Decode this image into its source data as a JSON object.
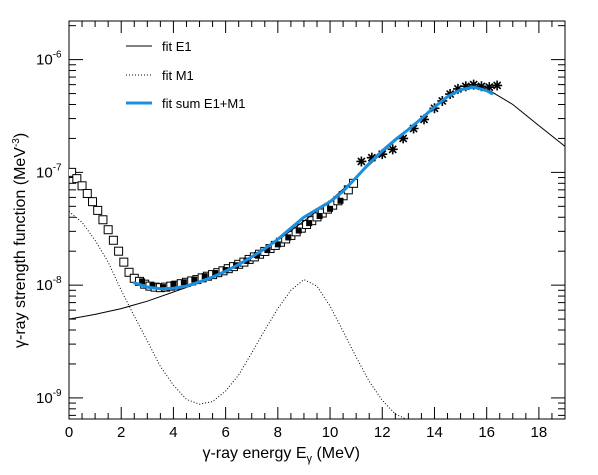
{
  "chart_data": {
    "type": "scatter",
    "xlabel": "γ-ray energy E",
    "xlabel_sub": "γ",
    "xlabel_unit": " (MeV)",
    "ylabel": "γ-ray strength function (MeV",
    "ylabel_sup": "-3",
    "ylabel_close": ")",
    "xlim": [
      0,
      19
    ],
    "ylim": [
      6.5e-10,
      2.2e-06
    ],
    "yscale": "log",
    "x_ticks": [
      0,
      2,
      4,
      6,
      8,
      10,
      12,
      14,
      16,
      18
    ],
    "y_ticks": [
      {
        "mantissa": "10",
        "exp": "-9",
        "value": 1e-09
      },
      {
        "mantissa": "10",
        "exp": "-8",
        "value": 1e-08
      },
      {
        "mantissa": "10",
        "exp": "-7",
        "value": 1e-07
      },
      {
        "mantissa": "10",
        "exp": "-6",
        "value": 1e-06
      }
    ],
    "legend_position": "top-left",
    "series": [
      {
        "name": "fit E1",
        "kind": "line",
        "color": "#000000",
        "style": "solid",
        "points": [
          [
            0,
            5e-09
          ],
          [
            1,
            5.5e-09
          ],
          [
            2,
            6.2e-09
          ],
          [
            3,
            7.2e-09
          ],
          [
            4,
            8.7e-09
          ],
          [
            5,
            1.05e-08
          ],
          [
            6,
            1.35e-08
          ],
          [
            7,
            1.8e-08
          ],
          [
            8,
            2.5e-08
          ],
          [
            9,
            3.7e-08
          ],
          [
            10,
            5.6e-08
          ],
          [
            11,
            9e-08
          ],
          [
            12,
            1.5e-07
          ],
          [
            13,
            2.4e-07
          ],
          [
            14,
            3.9e-07
          ],
          [
            15,
            5.4e-07
          ],
          [
            15.5,
            5.8e-07
          ],
          [
            16,
            5.5e-07
          ],
          [
            17,
            4e-07
          ],
          [
            18,
            2.6e-07
          ],
          [
            19,
            1.7e-07
          ]
        ]
      },
      {
        "name": "fit M1",
        "kind": "line",
        "color": "#000000",
        "style": "dotted",
        "points": [
          [
            0,
            4.5e-08
          ],
          [
            0.5,
            3.6e-08
          ],
          [
            1,
            2.5e-08
          ],
          [
            1.5,
            1.6e-08
          ],
          [
            2,
            9e-09
          ],
          [
            2.5,
            5.3e-09
          ],
          [
            3,
            3.2e-09
          ],
          [
            3.5,
            1.9e-09
          ],
          [
            4,
            1.3e-09
          ],
          [
            4.5,
            9.7e-10
          ],
          [
            5,
            8.8e-10
          ],
          [
            5.5,
            9.3e-10
          ],
          [
            6,
            1.15e-09
          ],
          [
            6.5,
            1.6e-09
          ],
          [
            7,
            2.5e-09
          ],
          [
            7.5,
            4e-09
          ],
          [
            8,
            6.2e-09
          ],
          [
            8.5,
            9e-09
          ],
          [
            9,
            1.12e-08
          ],
          [
            9.5,
            9.8e-09
          ],
          [
            10,
            6.5e-09
          ],
          [
            10.5,
            3.9e-09
          ],
          [
            11,
            2.3e-09
          ],
          [
            11.5,
            1.4e-09
          ],
          [
            12,
            9.5e-10
          ],
          [
            12.5,
            7.2e-10
          ],
          [
            12.9,
            6.5e-10
          ]
        ]
      },
      {
        "name": "fit sum E1+M1",
        "kind": "line",
        "color": "#1a8fe0",
        "style": "solid",
        "points": [
          [
            2.5,
            1.05e-08
          ],
          [
            3,
            9.6e-09
          ],
          [
            3.5,
            9.3e-09
          ],
          [
            4,
            9.4e-09
          ],
          [
            4.5,
            9.8e-09
          ],
          [
            5,
            1.07e-08
          ],
          [
            5.5,
            1.18e-08
          ],
          [
            6,
            1.33e-08
          ],
          [
            6.5,
            1.52e-08
          ],
          [
            7,
            1.78e-08
          ],
          [
            7.5,
            2.1e-08
          ],
          [
            8,
            2.55e-08
          ],
          [
            8.5,
            3.2e-08
          ],
          [
            9,
            4e-08
          ],
          [
            9.5,
            4.7e-08
          ],
          [
            10,
            5.5e-08
          ],
          [
            10.5,
            6.8e-08
          ],
          [
            11,
            9e-08
          ],
          [
            11.5,
            1.2e-07
          ],
          [
            12,
            1.55e-07
          ],
          [
            12.5,
            1.95e-07
          ],
          [
            13,
            2.4e-07
          ],
          [
            13.5,
            3e-07
          ],
          [
            14,
            3.8e-07
          ],
          [
            14.5,
            4.7e-07
          ],
          [
            15,
            5.4e-07
          ],
          [
            15.5,
            5.7e-07
          ],
          [
            16,
            5.3e-07
          ],
          [
            16.2,
            5e-07
          ]
        ]
      },
      {
        "name": "data (open squares)",
        "kind": "markers",
        "marker": "open-square",
        "color": "#000000",
        "points": [
          [
            0.1,
            1e-07
          ],
          [
            0.3,
            8.8e-08
          ],
          [
            0.5,
            7.6e-08
          ],
          [
            0.7,
            6.5e-08
          ],
          [
            0.9,
            5.5e-08
          ],
          [
            1.1,
            4.6e-08
          ],
          [
            1.3,
            3.8e-08
          ],
          [
            1.5,
            3.1e-08
          ],
          [
            1.7,
            2.5e-08
          ],
          [
            1.9,
            2e-08
          ],
          [
            2.1,
            1.6e-08
          ],
          [
            2.3,
            1.3e-08
          ],
          [
            2.5,
            1.15e-08
          ],
          [
            2.7,
            1.08e-08
          ],
          [
            2.9,
            1.02e-08
          ],
          [
            3.1,
            9.8e-09
          ],
          [
            3.3,
            9.6e-09
          ],
          [
            3.5,
            9.5e-09
          ],
          [
            3.7,
            9.6e-09
          ],
          [
            3.9,
            9.8e-09
          ],
          [
            4.1,
            1e-08
          ],
          [
            4.3,
            1.03e-08
          ],
          [
            4.5,
            1.06e-08
          ],
          [
            4.7,
            1.09e-08
          ],
          [
            4.9,
            1.12e-08
          ],
          [
            5.1,
            1.16e-08
          ],
          [
            5.3,
            1.2e-08
          ],
          [
            5.5,
            1.24e-08
          ],
          [
            5.7,
            1.29e-08
          ],
          [
            5.9,
            1.34e-08
          ],
          [
            6.1,
            1.4e-08
          ],
          [
            6.3,
            1.46e-08
          ],
          [
            6.5,
            1.53e-08
          ],
          [
            6.7,
            1.6e-08
          ],
          [
            6.9,
            1.69e-08
          ],
          [
            7.1,
            1.78e-08
          ],
          [
            7.3,
            1.88e-08
          ],
          [
            7.5,
            1.99e-08
          ],
          [
            7.7,
            2.11e-08
          ],
          [
            7.9,
            2.25e-08
          ],
          [
            8.1,
            2.4e-08
          ],
          [
            8.3,
            2.57e-08
          ],
          [
            8.5,
            2.76e-08
          ],
          [
            8.7,
            2.97e-08
          ],
          [
            8.9,
            3.2e-08
          ],
          [
            9.1,
            3.45e-08
          ],
          [
            9.3,
            3.73e-08
          ],
          [
            9.5,
            4.03e-08
          ],
          [
            9.7,
            4.36e-08
          ],
          [
            9.9,
            4.72e-08
          ],
          [
            10.1,
            5.12e-08
          ],
          [
            10.3,
            5.6e-08
          ],
          [
            10.5,
            6.2e-08
          ],
          [
            10.7,
            7e-08
          ],
          [
            10.9,
            8e-08
          ]
        ]
      },
      {
        "name": "data (filled squares)",
        "kind": "markers",
        "marker": "filled-square",
        "color": "#000000",
        "points": [
          [
            2.8,
            1.08e-08
          ],
          [
            3.2,
            9.9e-09
          ],
          [
            3.6,
            9.6e-09
          ],
          [
            4.0,
            1.02e-08
          ],
          [
            4.4,
            1.06e-08
          ],
          [
            4.8,
            1.12e-08
          ],
          [
            5.2,
            1.2e-08
          ],
          [
            5.6,
            1.28e-08
          ],
          [
            6.0,
            1.36e-08
          ],
          [
            6.4,
            1.5e-08
          ],
          [
            6.8,
            1.65e-08
          ],
          [
            7.2,
            1.85e-08
          ],
          [
            7.6,
            2.05e-08
          ],
          [
            8.0,
            2.3e-08
          ],
          [
            8.4,
            2.65e-08
          ],
          [
            8.8,
            3.05e-08
          ],
          [
            9.2,
            3.55e-08
          ],
          [
            9.6,
            4.1e-08
          ],
          [
            10.0,
            4.75e-08
          ],
          [
            10.4,
            5.6e-08
          ]
        ]
      },
      {
        "name": "data (stars)",
        "kind": "markers",
        "marker": "star",
        "color": "#000000",
        "points": [
          [
            11.2,
            1.25e-07
          ],
          [
            11.6,
            1.35e-07
          ],
          [
            12.0,
            1.45e-07
          ],
          [
            12.4,
            1.6e-07
          ],
          [
            12.8,
            2e-07
          ],
          [
            13.2,
            2.45e-07
          ],
          [
            13.6,
            2.95e-07
          ],
          [
            14.0,
            3.7e-07
          ],
          [
            14.3,
            4.3e-07
          ],
          [
            14.6,
            4.95e-07
          ],
          [
            14.9,
            5.5e-07
          ],
          [
            15.2,
            5.8e-07
          ],
          [
            15.5,
            6e-07
          ],
          [
            15.8,
            5.8e-07
          ],
          [
            16.1,
            5.7e-07
          ],
          [
            16.4,
            5.9e-07
          ]
        ]
      }
    ]
  }
}
